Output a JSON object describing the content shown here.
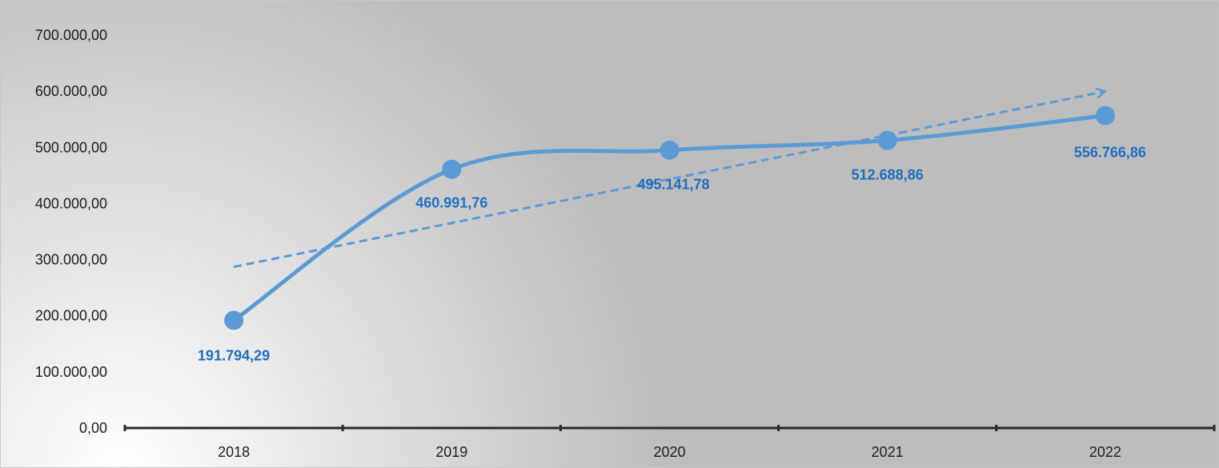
{
  "chart_data": {
    "type": "line",
    "categories": [
      "2018",
      "2019",
      "2020",
      "2021",
      "2022"
    ],
    "series": [
      {
        "values": [
          191794.29,
          460991.76,
          495141.78,
          512688.86,
          556766.86
        ],
        "data_labels": [
          "191.794,29",
          "460.991,76",
          "495.141,78",
          "512.688,86",
          "556.766,86"
        ],
        "color": "#5b9bd5",
        "smooth": true,
        "markers": true
      }
    ],
    "trendline": {
      "type": "linear",
      "style": "dashed",
      "arrow": true,
      "color": "#5b9bd5"
    },
    "y_ticks": [
      "0,00",
      "100.000,00",
      "200.000,00",
      "300.000,00",
      "400.000,00",
      "500.000,00",
      "600.000,00",
      "700.000,00"
    ],
    "ylim": [
      0,
      700000
    ],
    "grid": false,
    "legend": "none",
    "data_label_color": "#1f6fbf",
    "axis_color": "#2a2a2a",
    "background_gradient": [
      "#ffffff",
      "#bdbdbd"
    ]
  }
}
